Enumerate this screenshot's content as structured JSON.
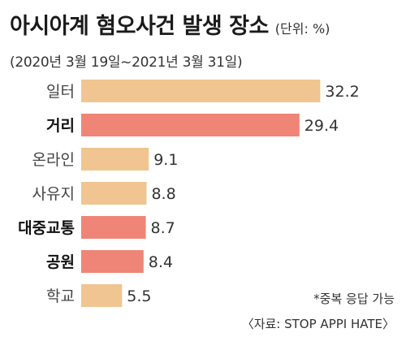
{
  "chart_data": {
    "type": "bar",
    "orientation": "horizontal",
    "title": "아시아계 혐오사건 발생 장소",
    "unit": "(단위: %)",
    "subtitle": "(2020년 3월 19일~2021년 3월 31일)",
    "categories": [
      "일터",
      "거리",
      "온라인",
      "사유지",
      "대중교통",
      "공원",
      "학교"
    ],
    "values": [
      32.2,
      29.4,
      9.1,
      8.8,
      8.7,
      8.4,
      5.5
    ],
    "value_labels": [
      "32.2",
      "29.4",
      "9.1",
      "8.8",
      "8.7",
      "8.4",
      "5.5"
    ],
    "highlight": [
      false,
      true,
      false,
      false,
      true,
      true,
      false
    ],
    "xlim": [
      0,
      35
    ],
    "colors": {
      "normal": "#F0C591",
      "highlight": "#EE8576"
    },
    "notes": [
      "*중복 응답 가능",
      "〈자료: STOP APPI HATE〉"
    ]
  }
}
